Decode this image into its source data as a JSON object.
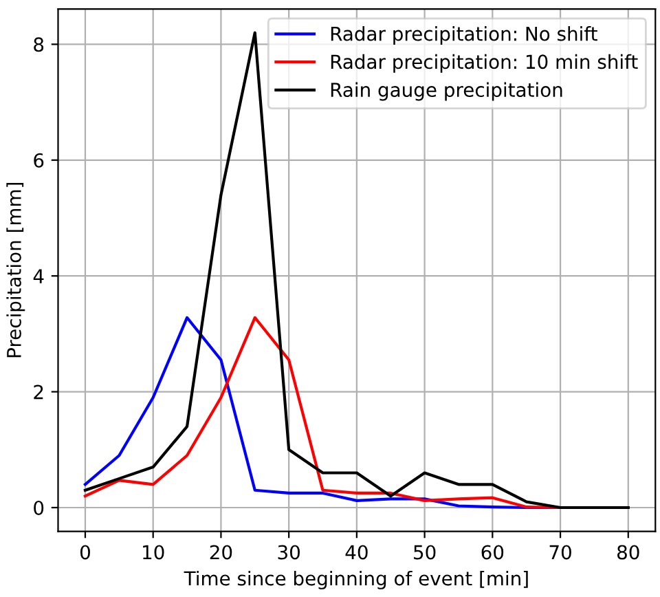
{
  "chart_data": {
    "type": "line",
    "xlabel": "Time since beginning of event [min]",
    "ylabel": "Precipitation [mm]",
    "x": [
      0,
      5,
      10,
      15,
      20,
      25,
      30,
      35,
      40,
      45,
      50,
      55,
      60,
      65,
      70,
      75,
      80
    ],
    "series": [
      {
        "name": "Radar precipitation: No shift",
        "color": "#0000ff",
        "values": [
          0.4,
          0.9,
          1.9,
          3.28,
          2.55,
          0.3,
          0.25,
          0.25,
          0.12,
          0.15,
          0.15,
          0.03,
          0.01,
          0,
          0,
          null,
          null
        ]
      },
      {
        "name": "Radar precipitation: 10 min shift",
        "color": "#ff0000",
        "values": [
          0.2,
          0.47,
          0.4,
          0.9,
          1.9,
          3.28,
          2.55,
          0.3,
          0.25,
          0.25,
          0.12,
          0.15,
          0.17,
          0.01,
          0,
          0,
          0
        ]
      },
      {
        "name": "Rain gauge precipitation",
        "color": "#000000",
        "values": [
          0.3,
          0.5,
          0.7,
          1.4,
          5.4,
          8.2,
          1.0,
          0.6,
          0.6,
          0.2,
          0.6,
          0.4,
          0.4,
          0.1,
          0,
          0,
          0
        ]
      }
    ],
    "xlim": [
      -4,
      84
    ],
    "xticks": [
      0,
      10,
      20,
      30,
      40,
      50,
      60,
      70,
      80
    ],
    "ylim": [
      -0.41,
      8.61
    ],
    "yticks": [
      0,
      2,
      4,
      6,
      8
    ],
    "grid": true,
    "legend": "top right"
  }
}
